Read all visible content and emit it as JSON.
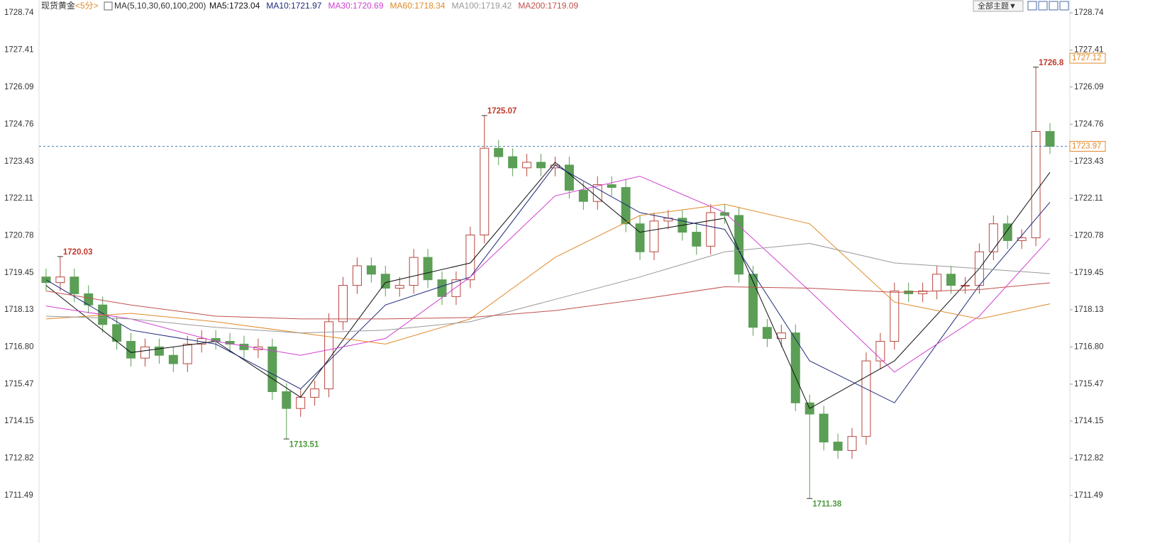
{
  "chart_data": {
    "type": "candlestick",
    "symbol": "现货黄金",
    "period": "<5分>",
    "indicator": "MA(5,10,30,60,100,200)",
    "theme_button": "全部主题▼",
    "ylim": [
      1710.45,
      1729.2
    ],
    "yticks": [
      1728.74,
      1727.41,
      1726.09,
      1724.76,
      1723.43,
      1722.11,
      1720.78,
      1719.45,
      1718.13,
      {
        "value": 1716.8,
        "label": "1716.80"
      },
      1715.47,
      1714.15,
      1712.82,
      1711.49
    ],
    "up_color": "#b8473f",
    "down_color": "#5b9e55",
    "open": [
      1719.3,
      1719.1,
      1719.3,
      1718.7,
      1718.3,
      1717.6,
      1717.0,
      1716.4,
      1716.8,
      1716.5,
      1716.2,
      1716.9,
      1717.1,
      1717.0,
      1716.9,
      1716.7,
      1716.8,
      1715.2,
      1714.6,
      1715.0,
      1715.3,
      1717.7,
      1719.0,
      1719.7,
      1719.4,
      1718.9,
      1719.0,
      1720.0,
      1719.2,
      1718.6,
      1719.2,
      1720.8,
      1723.9,
      1723.6,
      1723.2,
      1723.4,
      1723.2,
      1723.3,
      1722.4,
      1722.0,
      1722.6,
      1722.5,
      1721.2,
      1720.2,
      1721.3,
      1721.4,
      1720.9,
      1720.4,
      1721.6,
      1721.5,
      1719.4,
      1717.5,
      1717.1,
      1717.3,
      1714.8,
      1714.4,
      1713.4,
      1713.1,
      1713.6,
      1716.3,
      1717.0,
      1718.8,
      1718.7,
      1718.8,
      1719.4,
      1719.0,
      1719.0,
      1720.2,
      1721.2,
      1720.6,
      1720.7,
      1724.5
    ],
    "high": [
      1719.6,
      1720.03,
      1719.6,
      1719.0,
      1718.6,
      1717.9,
      1717.3,
      1717.1,
      1717.1,
      1716.8,
      1717.2,
      1717.4,
      1717.4,
      1717.3,
      1717.2,
      1717.1,
      1717.1,
      1715.5,
      1715.3,
      1715.6,
      1718.0,
      1719.3,
      1720.0,
      1720.0,
      1719.7,
      1719.3,
      1720.3,
      1720.3,
      1719.5,
      1719.5,
      1721.1,
      1725.07,
      1724.2,
      1723.9,
      1723.7,
      1723.7,
      1723.6,
      1723.6,
      1722.7,
      1722.9,
      1722.9,
      1722.8,
      1721.5,
      1721.6,
      1721.7,
      1721.7,
      1721.2,
      1721.9,
      1721.9,
      1721.8,
      1719.7,
      1717.8,
      1717.6,
      1717.6,
      1715.1,
      1714.7,
      1713.7,
      1713.9,
      1716.6,
      1717.3,
      1719.1,
      1719.1,
      1719.1,
      1719.7,
      1719.7,
      1719.3,
      1720.5,
      1721.5,
      1721.5,
      1721.0,
      1726.8,
      1724.8
    ],
    "low": [
      1718.8,
      1718.8,
      1718.4,
      1718.0,
      1717.3,
      1716.7,
      1716.1,
      1716.1,
      1716.2,
      1715.9,
      1715.9,
      1716.6,
      1716.7,
      1716.6,
      1716.4,
      1716.4,
      1714.9,
      1713.51,
      1714.3,
      1714.7,
      1715.0,
      1717.4,
      1718.7,
      1719.1,
      1718.6,
      1718.6,
      1718.7,
      1718.9,
      1718.3,
      1718.3,
      1718.9,
      1720.5,
      1723.3,
      1722.9,
      1722.9,
      1722.9,
      1722.9,
      1722.1,
      1721.7,
      1721.7,
      1722.2,
      1720.9,
      1719.9,
      1719.9,
      1721.0,
      1720.6,
      1720.1,
      1720.1,
      1721.2,
      1719.1,
      1717.2,
      1716.8,
      1716.8,
      1714.5,
      1711.38,
      1713.1,
      1712.8,
      1712.8,
      1713.3,
      1716.0,
      1716.7,
      1718.4,
      1718.4,
      1718.5,
      1718.7,
      1718.7,
      1718.7,
      1719.9,
      1720.3,
      1720.3,
      1720.4,
      1723.7
    ],
    "close": [
      1719.1,
      1719.3,
      1718.7,
      1718.3,
      1717.6,
      1717.0,
      1716.4,
      1716.8,
      1716.5,
      1716.2,
      1716.9,
      1717.1,
      1717.0,
      1716.9,
      1716.7,
      1716.8,
      1715.2,
      1714.6,
      1715.0,
      1715.3,
      1717.7,
      1719.0,
      1719.7,
      1719.4,
      1718.9,
      1719.0,
      1720.0,
      1719.2,
      1718.6,
      1719.2,
      1720.8,
      1723.9,
      1723.6,
      1723.2,
      1723.4,
      1723.2,
      1723.3,
      1722.4,
      1722.0,
      1722.6,
      1722.5,
      1721.2,
      1720.2,
      1721.3,
      1721.4,
      1720.9,
      1720.4,
      1721.6,
      1721.5,
      1719.4,
      1717.5,
      1717.1,
      1717.3,
      1714.8,
      1714.4,
      1713.4,
      1713.1,
      1713.6,
      1716.3,
      1717.0,
      1718.8,
      1718.7,
      1718.8,
      1719.4,
      1719.0,
      1719.0,
      1720.2,
      1721.2,
      1720.6,
      1720.7,
      1724.5,
      1723.97
    ],
    "series_x": [
      0,
      6,
      12,
      18,
      24,
      30,
      36,
      42,
      48,
      54,
      60,
      66,
      71
    ],
    "series": [
      {
        "name": "MA5:1723.04",
        "color": "#111111",
        "values": [
          1719.0,
          1716.6,
          1717.0,
          1715.0,
          1719.1,
          1719.8,
          1723.4,
          1720.9,
          1721.4,
          1714.6,
          1716.3,
          1719.6,
          1723.04
        ]
      },
      {
        "name": "MA10:1721.97",
        "color": "#1f2a7a",
        "values": [
          1719.2,
          1717.4,
          1716.9,
          1715.3,
          1718.3,
          1719.3,
          1723.3,
          1721.6,
          1721.0,
          1716.3,
          1714.8,
          1719.0,
          1721.97
        ]
      },
      {
        "name": "MA30:1720.69",
        "color": "#d040d0",
        "values": [
          1718.26,
          1717.8,
          1717.0,
          1716.5,
          1717.1,
          1719.3,
          1722.2,
          1722.9,
          1721.6,
          1718.8,
          1715.9,
          1717.9,
          1720.69
        ]
      },
      {
        "name": "MA60:1718.34",
        "color": "#e08a2a",
        "values": [
          1717.8,
          1718.0,
          1717.7,
          1717.3,
          1716.9,
          1717.8,
          1720.0,
          1721.5,
          1721.9,
          1721.2,
          1718.4,
          1717.8,
          1718.34
        ]
      },
      {
        "name": "MA100:1719.42",
        "color": "#999999",
        "values": [
          1717.9,
          1717.8,
          1717.5,
          1717.3,
          1717.4,
          1717.7,
          1718.5,
          1719.3,
          1720.2,
          1720.5,
          1719.8,
          1719.6,
          1719.42
        ]
      },
      {
        "name": "MA200:1719.09",
        "color": "#c0504d",
        "values": [
          1718.8,
          1718.3,
          1717.9,
          1717.8,
          1717.8,
          1717.85,
          1718.1,
          1718.5,
          1718.95,
          1718.9,
          1718.75,
          1718.85,
          1719.09
        ]
      }
    ],
    "extremes": [
      1720.03,
      1725.07,
      1713.51,
      1711.38,
      1726.8
    ],
    "current_price": 1723.97,
    "marker_price": 1727.12
  }
}
